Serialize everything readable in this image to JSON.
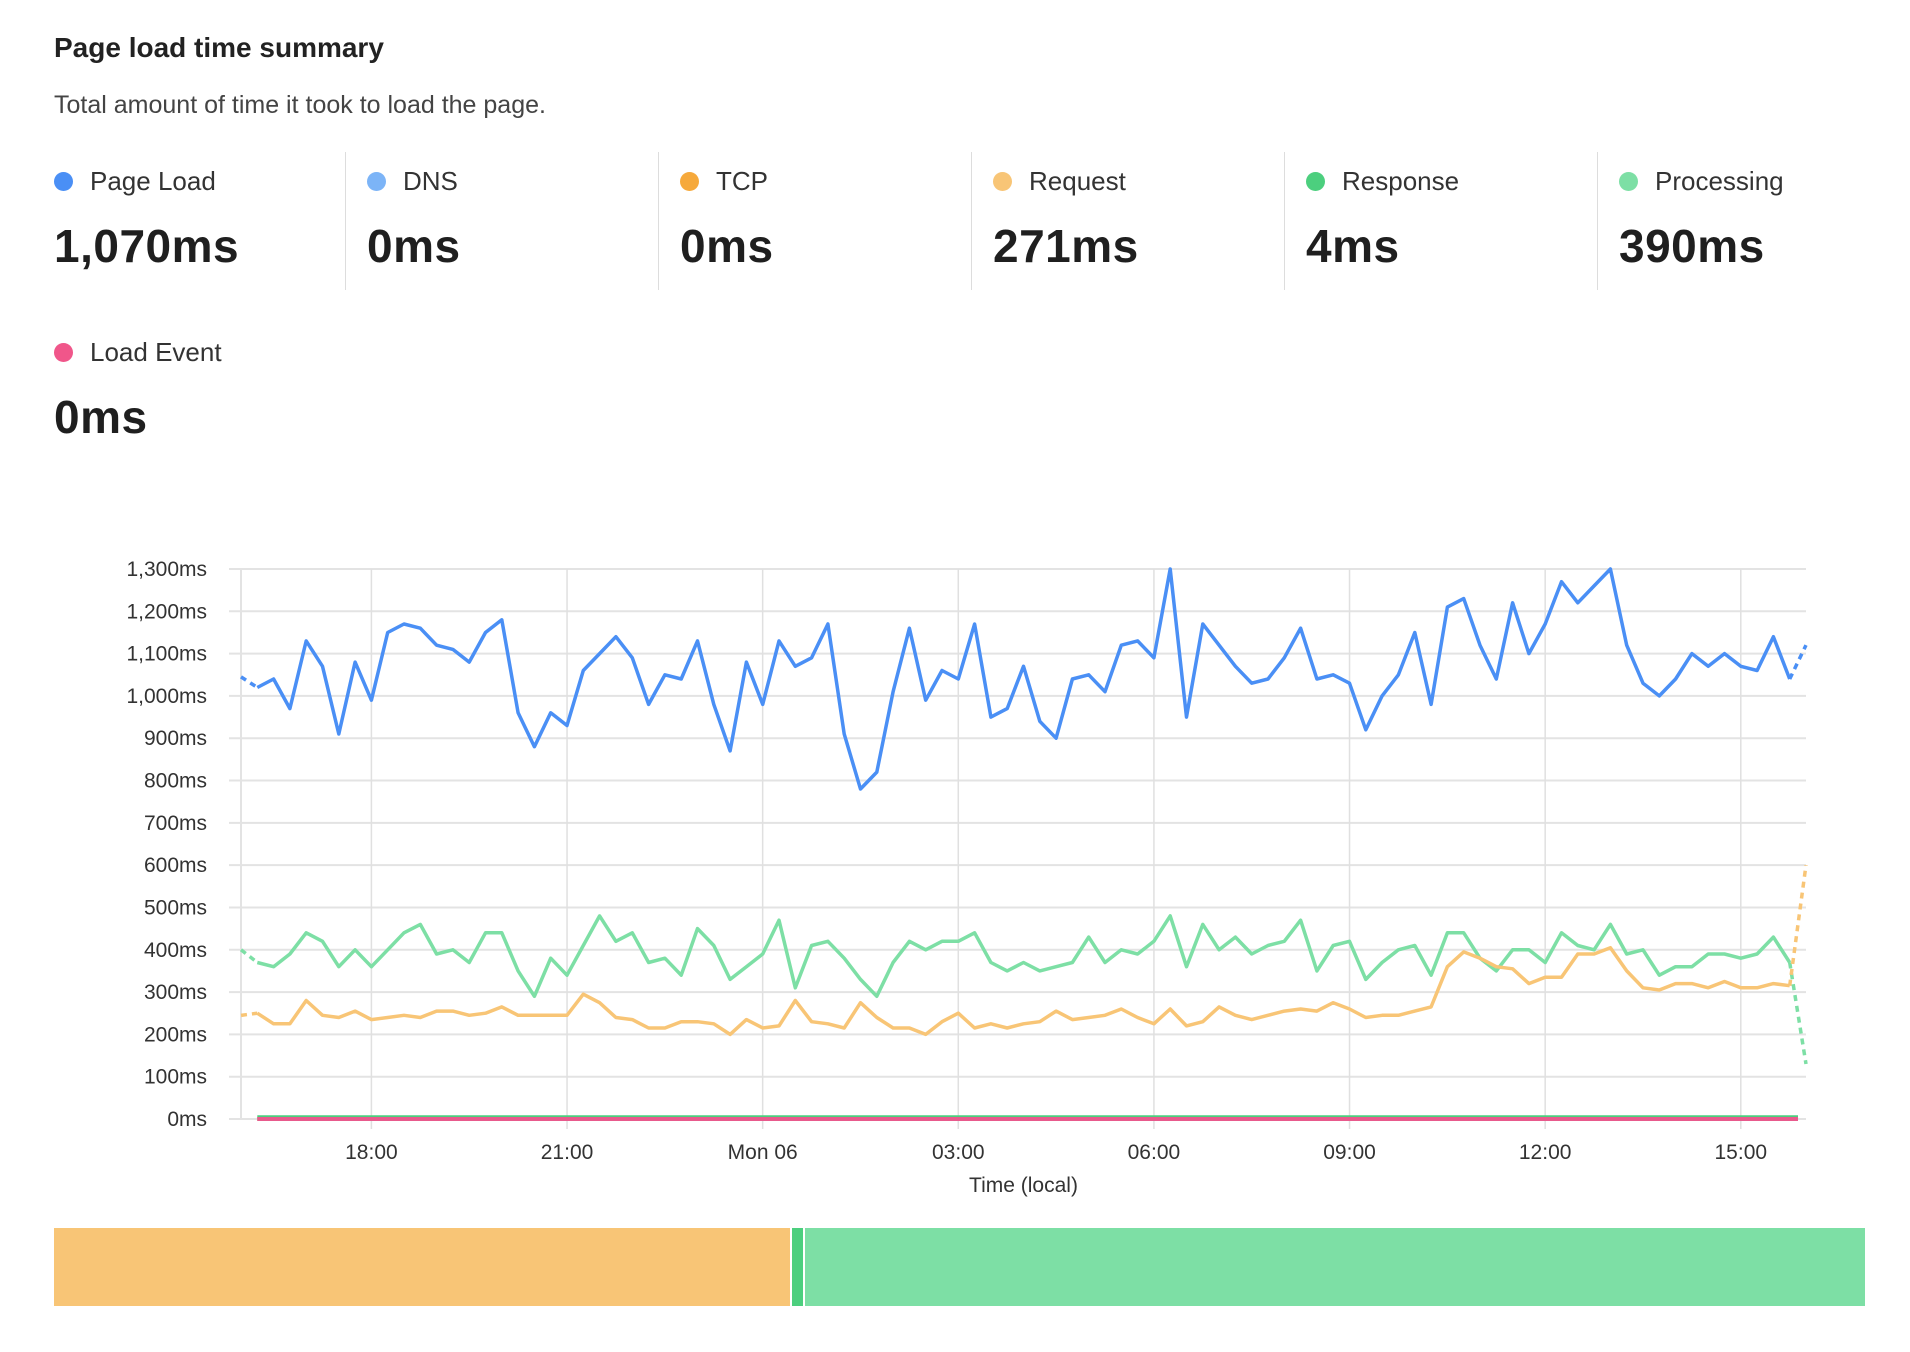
{
  "header": {
    "title": "Page load time summary",
    "subtitle": "Total amount of time it took to load the page."
  },
  "metrics": [
    {
      "label": "Page Load",
      "value": "1,070ms",
      "ms": 1070,
      "color": "#4a8ff5"
    },
    {
      "label": "DNS",
      "value": "0ms",
      "ms": 0,
      "color": "#7cb4f7"
    },
    {
      "label": "TCP",
      "value": "0ms",
      "ms": 0,
      "color": "#f6a93b"
    },
    {
      "label": "Request",
      "value": "271ms",
      "ms": 271,
      "color": "#f8c576"
    },
    {
      "label": "Response",
      "value": "4ms",
      "ms": 4,
      "color": "#4ccf7e"
    },
    {
      "label": "Processing",
      "value": "390ms",
      "ms": 390,
      "color": "#7ddfa5"
    },
    {
      "label": "Load Event",
      "value": "0ms",
      "ms": 0,
      "color": "#f0568a"
    }
  ],
  "chart_data": {
    "type": "line",
    "xlabel": "Time (local)",
    "ylabel": "",
    "ylim": [
      0,
      1300
    ],
    "y_ticks": [
      "0ms",
      "100ms",
      "200ms",
      "300ms",
      "400ms",
      "500ms",
      "600ms",
      "700ms",
      "800ms",
      "900ms",
      "1,000ms",
      "1,100ms",
      "1,200ms",
      "1,300ms"
    ],
    "x_ticks": [
      "18:00",
      "21:00",
      "Mon 06",
      "03:00",
      "06:00",
      "09:00",
      "12:00",
      "15:00"
    ],
    "x_range": [
      "16:00",
      "Mon 16:00"
    ],
    "sample_interval": "15 min",
    "grid": true,
    "legend": "none",
    "last_segment": "dashed",
    "series": [
      {
        "name": "Page Load",
        "color": "#4a8ff5",
        "values": [
          1045,
          1020,
          1040,
          970,
          1130,
          1070,
          910,
          1080,
          990,
          1150,
          1170,
          1160,
          1120,
          1110,
          1080,
          1150,
          1180,
          960,
          880,
          960,
          930,
          1060,
          1100,
          1140,
          1090,
          980,
          1050,
          1040,
          1130,
          980,
          870,
          1080,
          980,
          1130,
          1070,
          1090,
          1170,
          910,
          780,
          820,
          1010,
          1160,
          990,
          1060,
          1040,
          1170,
          950,
          970,
          1070,
          940,
          900,
          1040,
          1050,
          1010,
          1120,
          1130,
          1090,
          1300,
          950,
          1170,
          1120,
          1070,
          1030,
          1040,
          1090,
          1160,
          1040,
          1050,
          1030,
          920,
          1000,
          1050,
          1150,
          980,
          1210,
          1230,
          1120,
          1040,
          1220,
          1100,
          1170,
          1270,
          1220,
          1260,
          1300,
          1120,
          1030,
          1000,
          1040,
          1100,
          1070,
          1100,
          1070,
          1060,
          1140,
          1040,
          1120
        ]
      },
      {
        "name": "Processing",
        "color": "#7ddfa5",
        "values": [
          400,
          370,
          360,
          390,
          440,
          420,
          360,
          400,
          360,
          400,
          440,
          460,
          390,
          400,
          370,
          440,
          440,
          350,
          290,
          380,
          340,
          410,
          480,
          420,
          440,
          370,
          380,
          340,
          450,
          410,
          330,
          360,
          390,
          470,
          310,
          410,
          420,
          380,
          330,
          290,
          370,
          420,
          400,
          420,
          420,
          440,
          370,
          350,
          370,
          350,
          360,
          370,
          430,
          370,
          400,
          390,
          420,
          480,
          360,
          460,
          400,
          430,
          390,
          410,
          420,
          470,
          350,
          410,
          420,
          330,
          370,
          400,
          410,
          340,
          440,
          440,
          380,
          350,
          400,
          400,
          370,
          440,
          410,
          400,
          460,
          390,
          400,
          340,
          360,
          360,
          390,
          390,
          380,
          390,
          430,
          370,
          130
        ]
      },
      {
        "name": "Request",
        "color": "#f8c576",
        "values": [
          245,
          250,
          225,
          225,
          280,
          245,
          240,
          255,
          235,
          240,
          245,
          240,
          255,
          255,
          245,
          250,
          265,
          245,
          245,
          245,
          245,
          295,
          275,
          240,
          235,
          215,
          215,
          230,
          230,
          225,
          200,
          235,
          215,
          220,
          280,
          230,
          225,
          215,
          275,
          240,
          215,
          215,
          200,
          230,
          250,
          215,
          225,
          215,
          225,
          230,
          255,
          235,
          240,
          245,
          260,
          240,
          225,
          260,
          220,
          230,
          265,
          245,
          235,
          245,
          255,
          260,
          255,
          275,
          260,
          240,
          245,
          245,
          255,
          265,
          360,
          395,
          380,
          360,
          355,
          320,
          335,
          335,
          390,
          390,
          405,
          350,
          310,
          305,
          320,
          320,
          310,
          325,
          310,
          310,
          320,
          315,
          600
        ]
      },
      {
        "name": "Response",
        "color": "#4ccf7e",
        "flat_value": 4
      },
      {
        "name": "DNS",
        "color": "#7cb4f7",
        "flat_value": 0
      },
      {
        "name": "TCP",
        "color": "#f6a93b",
        "flat_value": 0
      },
      {
        "name": "Load Event",
        "color": "#e85a8c",
        "flat_value": 0
      }
    ]
  },
  "breakdown_bar": {
    "segments": [
      {
        "label": "Request",
        "ms": 271,
        "color": "#f8c576"
      },
      {
        "label": "Response",
        "ms": 4,
        "color": "#4ccf7e"
      },
      {
        "label": "Processing",
        "ms": 390,
        "color": "#7ddfa5"
      }
    ]
  }
}
